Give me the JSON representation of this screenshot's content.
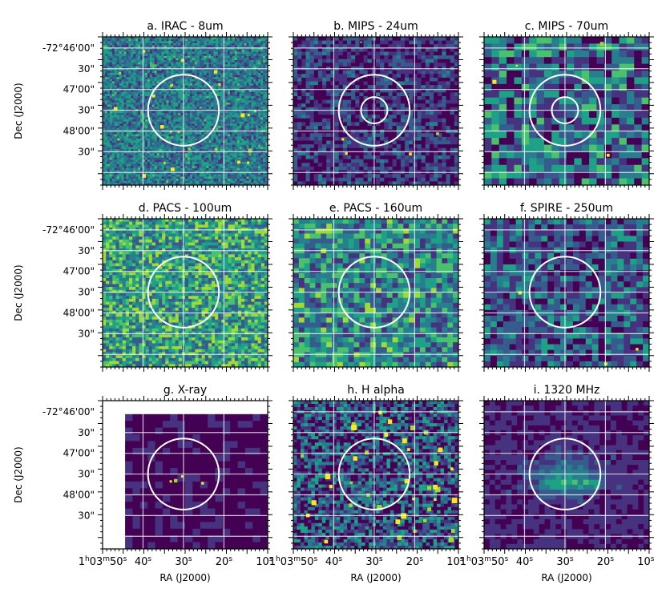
{
  "figure": {
    "colors": {
      "cmap": [
        "#440154",
        "#46327e",
        "#365c8d",
        "#277f8e",
        "#1fa187",
        "#4ac16d",
        "#a0da39",
        "#fde725"
      ],
      "grid": "#ffffff",
      "circle": "#ffffff",
      "frame": "#000000"
    },
    "y_axis_label": "Dec (J2000)",
    "x_axis_label": "RA (J2000)",
    "y_ticks": [
      "-72°46'00\"",
      "30\"",
      "47'00\"",
      "30\"",
      "48'00\"",
      "30\""
    ],
    "x_ticks": [
      {
        "base": "1",
        "sup1": "h",
        "mid": "03",
        "sup2": "m",
        "mid2": "50",
        "sup3": "s"
      },
      {
        "base": "40",
        "sup": "s"
      },
      {
        "base": "30",
        "sup": "s"
      },
      {
        "base": "20",
        "sup": "s"
      },
      {
        "base": "10",
        "sup": "s"
      }
    ],
    "panels": [
      {
        "title": "a. IRAC - 8um",
        "style": "irac",
        "inner_ring": false
      },
      {
        "title": "b. MIPS - 24um",
        "style": "mips24",
        "inner_ring": true
      },
      {
        "title": "c. MIPS - 70um",
        "style": "mips70",
        "inner_ring": true
      },
      {
        "title": "d. PACS - 100um",
        "style": "pacs100",
        "inner_ring": false
      },
      {
        "title": "e. PACS - 160um",
        "style": "pacs160",
        "inner_ring": false
      },
      {
        "title": "f. SPIRE - 250um",
        "style": "spire",
        "inner_ring": false
      },
      {
        "title": "g. X-ray",
        "style": "xray",
        "inner_ring": false
      },
      {
        "title": "h. H alpha",
        "style": "halpha",
        "inner_ring": false
      },
      {
        "title": "i. 1320 MHz",
        "style": "radio",
        "inner_ring": false
      }
    ]
  }
}
